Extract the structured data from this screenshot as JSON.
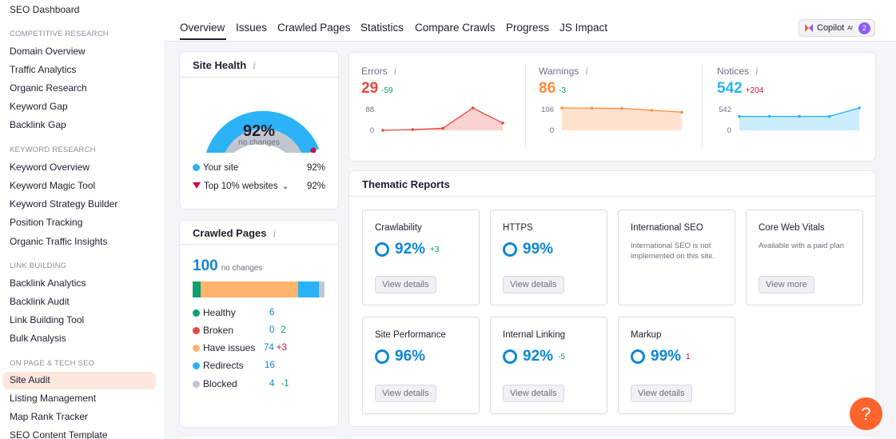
{
  "sidebar": {
    "top_link": "SEO Dashboard",
    "sections": [
      {
        "title": "COMPETITIVE RESEARCH",
        "items": [
          "Domain Overview",
          "Traffic Analytics",
          "Organic Research",
          "Keyword Gap",
          "Backlink Gap"
        ]
      },
      {
        "title": "KEYWORD RESEARCH",
        "items": [
          "Keyword Overview",
          "Keyword Magic Tool",
          "Keyword Strategy Builder",
          "Position Tracking",
          "Organic Traffic Insights"
        ]
      },
      {
        "title": "LINK BUILDING",
        "items": [
          "Backlink Analytics",
          "Backlink Audit",
          "Link Building Tool",
          "Bulk Analysis"
        ]
      },
      {
        "title": "ON PAGE & TECH SEO",
        "items": [
          "Site Audit",
          "Listing Management",
          "Map Rank Tracker",
          "SEO Content Template"
        ]
      }
    ],
    "active_item": "Site Audit"
  },
  "tabs": [
    "Overview",
    "Issues",
    "Crawled Pages",
    "Statistics",
    "Compare Crawls",
    "Progress",
    "JS Impact"
  ],
  "active_tab": "Overview",
  "copilot": {
    "label": "Copilot",
    "ai": "AI",
    "count": "2"
  },
  "site_health": {
    "title": "Site Health",
    "percent": "92%",
    "percent_value": 92,
    "subtitle": "no changes",
    "your_site_label": "Your site",
    "your_site_value": "92%",
    "top_label": "Top 10% websites",
    "top_value": "92%"
  },
  "crawled_pages": {
    "title": "Crawled Pages",
    "total": "100",
    "total_note": "no changes",
    "rows": [
      {
        "label": "Healthy",
        "value": "6",
        "delta": "",
        "color": "#0b9f72"
      },
      {
        "label": "Broken",
        "value": "0",
        "delta": "2",
        "color": "#d10b3e"
      },
      {
        "label": "Have issues",
        "value": "74",
        "delta": "+3",
        "color": "#ffb36b"
      },
      {
        "label": "Redirects",
        "value": "16",
        "delta": "",
        "color": "#2bb2f7"
      },
      {
        "label": "Blocked",
        "value": "4",
        "delta": "-1",
        "color": "#c2c6d1"
      }
    ]
  },
  "metrics": [
    {
      "title": "Errors",
      "value": "29",
      "delta": "-59",
      "color": "#e9473f",
      "axis_top": "88",
      "axis_bottom": "0",
      "series": [
        0,
        3,
        8,
        88,
        29
      ]
    },
    {
      "title": "Warnings",
      "value": "86",
      "delta": "-3",
      "color": "#ff8c38",
      "axis_top": "106",
      "axis_bottom": "0",
      "series": [
        106,
        105,
        104,
        95,
        86
      ]
    },
    {
      "title": "Notices",
      "value": "542",
      "delta": "+204",
      "color": "#2bb2f7",
      "axis_top": "542",
      "axis_bottom": "0",
      "series": [
        338,
        338,
        338,
        338,
        542
      ]
    }
  ],
  "thematic": {
    "title": "Thematic Reports",
    "cards": [
      {
        "name": "Crawlability",
        "pct": "92%",
        "delta": "+3",
        "delta_color": "#0b9f72",
        "button": "View details",
        "desc": ""
      },
      {
        "name": "HTTPS",
        "pct": "99%",
        "delta": "",
        "delta_color": "",
        "button": "View details",
        "desc": ""
      },
      {
        "name": "International SEO",
        "pct": "",
        "delta": "",
        "delta_color": "",
        "button": "",
        "desc": "International SEO is not implemented on this site."
      },
      {
        "name": "Core Web Vitals",
        "pct": "",
        "delta": "",
        "delta_color": "",
        "button": "View more",
        "desc": "Available with a paid plan"
      },
      {
        "name": "Site Performance",
        "pct": "96%",
        "delta": "",
        "delta_color": "",
        "button": "View details",
        "desc": ""
      },
      {
        "name": "Internal Linking",
        "pct": "92%",
        "delta": "-5",
        "delta_color": "#0b9f72",
        "button": "View details",
        "desc": ""
      },
      {
        "name": "Markup",
        "pct": "99%",
        "delta": "1",
        "delta_color": "#d10b3e",
        "button": "View details",
        "desc": ""
      }
    ]
  },
  "help_label": "?",
  "colors": {
    "accent_blue": "#2bb2f7",
    "link_blue": "#0d87d6",
    "orange": "#ff642d",
    "error_red": "#e9473f"
  }
}
